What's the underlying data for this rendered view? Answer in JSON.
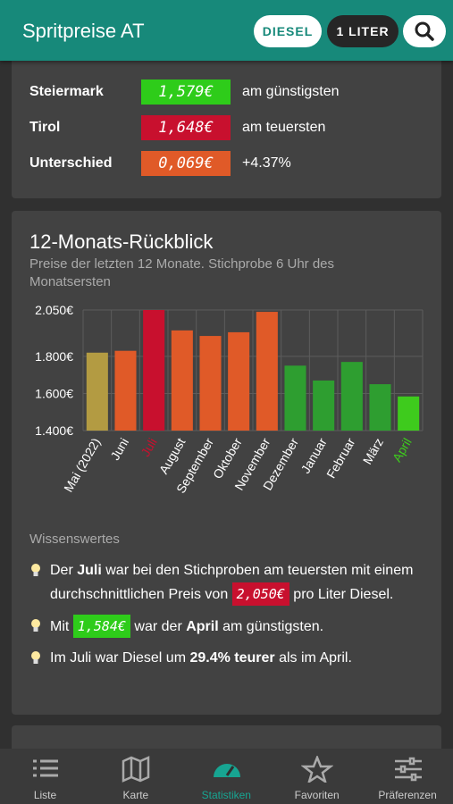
{
  "header": {
    "title": "Spritpreise AT",
    "fuel": "DIESEL",
    "unit": "1 LITER"
  },
  "summary": {
    "rows": [
      {
        "label": "Steiermark",
        "price": "1,579€",
        "price_color": "#2ecc1a",
        "note": "am günstigsten"
      },
      {
        "label": "Tirol",
        "price": "1,648€",
        "price_color": "#c8102e",
        "note": "am teuersten"
      },
      {
        "label": "Unterschied",
        "price": "0,069€",
        "price_color": "#e05a28",
        "note": "+4.37%"
      }
    ]
  },
  "chart_data": {
    "type": "bar",
    "title": "12-Monats-Rückblick",
    "subtitle": "Preise der letzten 12 Monate. Stichprobe 6 Uhr des Monatsersten",
    "categories": [
      "Mai (2022)",
      "Juni",
      "Juli",
      "August",
      "September",
      "Oktober",
      "November",
      "Dezember",
      "Januar",
      "Februar",
      "März",
      "April"
    ],
    "values": [
      1.82,
      1.83,
      2.05,
      1.94,
      1.91,
      1.93,
      2.04,
      1.75,
      1.67,
      1.77,
      1.65,
      1.584
    ],
    "colors": [
      "#b39b42",
      "#e05a28",
      "#c8102e",
      "#e05a28",
      "#e05a28",
      "#e05a28",
      "#e05a28",
      "#2e9e30",
      "#2e9e30",
      "#2e9e30",
      "#2e9e30",
      "#3ecb1d"
    ],
    "label_colors": [
      null,
      null,
      "#c8102e",
      null,
      null,
      null,
      null,
      null,
      null,
      null,
      null,
      "#3ecb1d"
    ],
    "ylim": [
      1.4,
      2.05
    ],
    "yticks": [
      {
        "value": 1.4,
        "label": "1.400€"
      },
      {
        "value": 1.6,
        "label": "1.600€"
      },
      {
        "value": 1.8,
        "label": "1.800€"
      },
      {
        "value": 2.05,
        "label": "2.050€"
      }
    ],
    "grid": true
  },
  "facts": {
    "title": "Wissenswertes",
    "items": [
      [
        {
          "text": "Der ",
          "style": "plain"
        },
        {
          "text": "Juli",
          "style": "bold"
        },
        {
          "text": " war bei den Stichproben am teuersten mit einem durchschnittlichen Preis von ",
          "style": "plain"
        },
        {
          "text": "2,050€",
          "style": "price-red"
        },
        {
          "text": " pro Liter Diesel.",
          "style": "plain"
        }
      ],
      [
        {
          "text": "Mit ",
          "style": "plain"
        },
        {
          "text": "1,584€",
          "style": "price-green"
        },
        {
          "text": " war der ",
          "style": "plain"
        },
        {
          "text": "April",
          "style": "bold"
        },
        {
          "text": " am günstigsten.",
          "style": "plain"
        }
      ],
      [
        {
          "text": "Im Juli war Diesel um ",
          "style": "plain"
        },
        {
          "text": "29.4% teurer",
          "style": "bold"
        },
        {
          "text": " als im April.",
          "style": "plain"
        }
      ]
    ]
  },
  "nav": {
    "items": [
      "Liste",
      "Karte",
      "Statistiken",
      "Favoriten",
      "Präferenzen"
    ],
    "active": 2
  }
}
